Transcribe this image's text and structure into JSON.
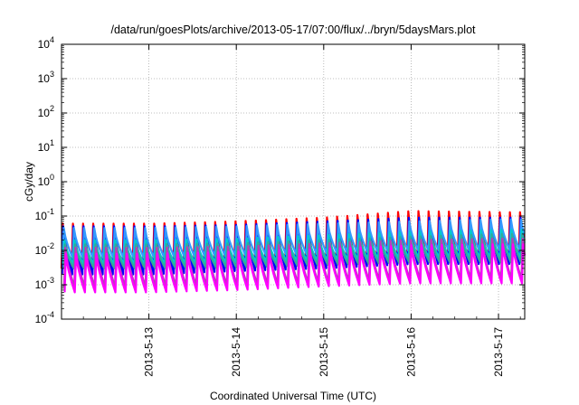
{
  "chart_data": {
    "type": "line",
    "title": "/data/run/goesPlots/archive/2013-05-17/07:00/flux/../bryn/5daysMars.plot",
    "xlabel": "Coordinated Universal Time (UTC)",
    "ylabel": "cGy/day",
    "yscale": "log",
    "ylim": [
      0.0001,
      10000
    ],
    "xlim": [
      0.0,
      5.3
    ],
    "grid": true,
    "y_ticks": [
      {
        "value": 0.0001,
        "base": "10",
        "exp": "-4"
      },
      {
        "value": 0.001,
        "base": "10",
        "exp": "-3"
      },
      {
        "value": 0.01,
        "base": "10",
        "exp": "-2"
      },
      {
        "value": 0.1,
        "base": "10",
        "exp": "-1"
      },
      {
        "value": 1,
        "base": "10",
        "exp": "0"
      },
      {
        "value": 10,
        "base": "10",
        "exp": "1"
      },
      {
        "value": 100,
        "base": "10",
        "exp": "2"
      },
      {
        "value": 1000,
        "base": "10",
        "exp": "3"
      },
      {
        "value": 10000,
        "base": "10",
        "exp": "4"
      }
    ],
    "x_ticks": [
      {
        "value": 1.0,
        "label": "2013-5-13"
      },
      {
        "value": 2.0,
        "label": "2013-5-14"
      },
      {
        "value": 3.0,
        "label": "2013-5-15"
      },
      {
        "value": 4.0,
        "label": "2013-5-16"
      },
      {
        "value": 5.0,
        "label": "2013-5-17"
      }
    ],
    "pattern": {
      "cycles_per_day": 8.6,
      "x_start": 0.0,
      "x_end": 5.3,
      "shape": "sawtooth: sharp rise then decay"
    },
    "series": [
      {
        "color": "#ff0000",
        "peak": [
          0.06,
          0.06,
          0.07,
          0.09,
          0.14,
          0.13
        ],
        "trough": [
          0.003,
          0.003,
          0.0035,
          0.004,
          0.006,
          0.006
        ]
      },
      {
        "color": "#0000ff",
        "peak": [
          0.05,
          0.05,
          0.055,
          0.07,
          0.09,
          0.09
        ],
        "trough": [
          0.002,
          0.002,
          0.0025,
          0.003,
          0.004,
          0.004
        ]
      },
      {
        "color": "#3399ff",
        "peak": [
          0.045,
          0.045,
          0.05,
          0.06,
          0.07,
          0.08
        ],
        "trough": [
          0.006,
          0.006,
          0.007,
          0.008,
          0.01,
          0.01
        ]
      },
      {
        "color": "#00cccc",
        "peak": [
          0.02,
          0.02,
          0.022,
          0.028,
          0.035,
          0.04
        ],
        "trough": [
          0.004,
          0.004,
          0.0045,
          0.005,
          0.006,
          0.006
        ]
      },
      {
        "color": "#33aa99",
        "peak": [
          0.015,
          0.015,
          0.016,
          0.02,
          0.025,
          0.03
        ],
        "trough": [
          0.003,
          0.003,
          0.0032,
          0.0038,
          0.0045,
          0.0045
        ]
      },
      {
        "color": "#b83dba",
        "peak": [
          0.012,
          0.012,
          0.013,
          0.016,
          0.02,
          0.022
        ],
        "trough": [
          0.0009,
          0.0009,
          0.001,
          0.0012,
          0.0015,
          0.0015
        ]
      },
      {
        "color": "#ff00ff",
        "peak": [
          0.008,
          0.008,
          0.009,
          0.011,
          0.014,
          0.015
        ],
        "trough": [
          0.0006,
          0.0006,
          0.0007,
          0.0009,
          0.0011,
          0.0011
        ]
      }
    ]
  }
}
